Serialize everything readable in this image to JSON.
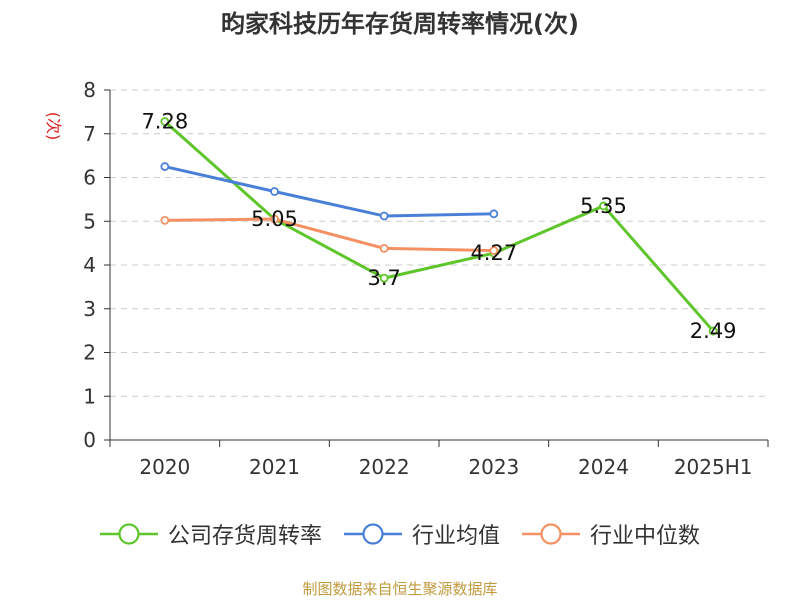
{
  "chart_data": {
    "type": "line",
    "title": "昀家科技历年存货周转率情况(次)",
    "ylabel": "(次)",
    "xlabel": "",
    "categories": [
      "2020",
      "2021",
      "2022",
      "2023",
      "2024",
      "2025H1"
    ],
    "ylim": [
      0,
      8
    ],
    "yticks": [
      0,
      1,
      2,
      3,
      4,
      5,
      6,
      7,
      8
    ],
    "grid": true,
    "legend_position": "bottom",
    "series": [
      {
        "name": "公司存货周转率",
        "color": "#5ec62b",
        "values": [
          7.28,
          5.05,
          3.7,
          4.27,
          5.35,
          2.49
        ],
        "labels": [
          "7.28",
          "5.05",
          "3.7",
          "4.27",
          "5.35",
          "2.49"
        ]
      },
      {
        "name": "行业均值",
        "color": "#4a7fd8",
        "values": [
          6.25,
          5.68,
          5.12,
          5.17,
          null,
          null
        ]
      },
      {
        "name": "行业中位数",
        "color": "#f49061",
        "values": [
          5.02,
          5.05,
          4.38,
          4.33,
          null,
          null
        ]
      }
    ]
  },
  "footer": {
    "text": "制图数据来自恒生聚源数据库",
    "color": "#c09a3d"
  },
  "colors": {
    "axis": "#333333",
    "grid": "#cccccc",
    "ylabel": "#e02020"
  }
}
